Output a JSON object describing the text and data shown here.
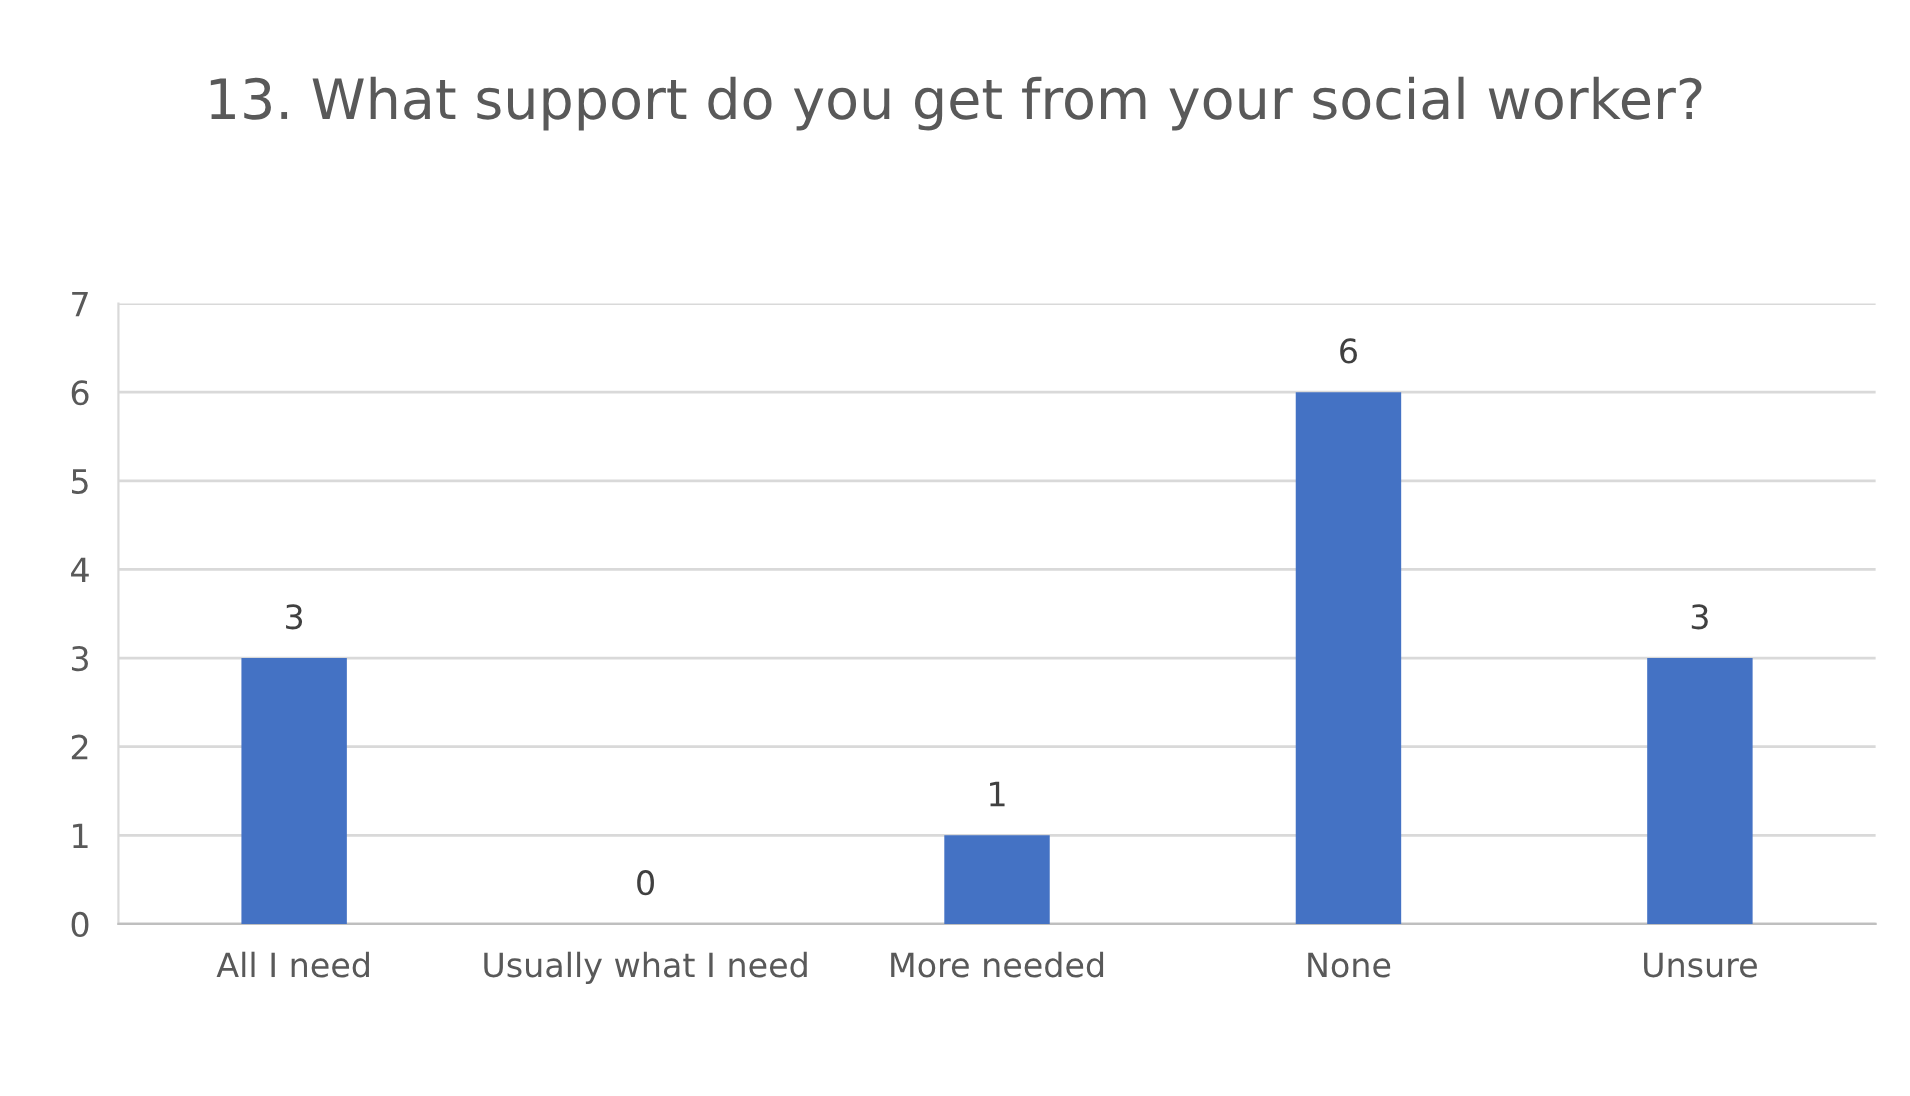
{
  "chart_data": {
    "type": "bar",
    "title": "13. What support do you get from your social worker?",
    "categories": [
      "All I need",
      "Usually what I need",
      "More needed",
      "None",
      "Unsure"
    ],
    "values": [
      3,
      0,
      1,
      6,
      3
    ],
    "color": "#4472c4",
    "ylim": [
      0,
      7
    ],
    "yticks": [
      0,
      1,
      2,
      3,
      4,
      5,
      6,
      7
    ],
    "grid": "y",
    "data_labels": true
  }
}
